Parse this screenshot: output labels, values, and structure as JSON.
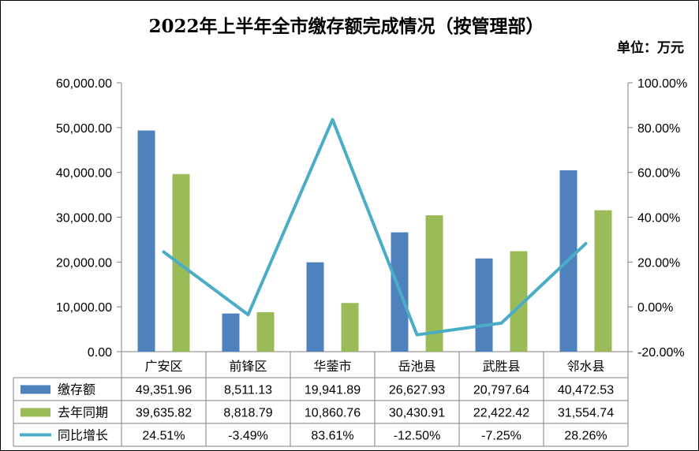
{
  "colors": {
    "bar_current": "#4f81bd",
    "bar_last_year": "#9bbb59",
    "line_growth": "#4bacc6",
    "axis": "#808080"
  },
  "chart_data": {
    "type": "bar",
    "title": "2022年上半年全市缴存额完成情况（按管理部）",
    "unit_label": "单位：万元",
    "categories": [
      "广安区",
      "前锋区",
      "华蓥市",
      "岳池县",
      "武胜县",
      "邻水县"
    ],
    "y_left": {
      "ylim": [
        0,
        60000
      ],
      "tick_labels": [
        "60,000.00",
        "50,000.00",
        "40,000.00",
        "30,000.00",
        "20,000.00",
        "10,000.00",
        "0.00"
      ]
    },
    "y_right": {
      "ylim": [
        -20,
        100
      ],
      "tick_labels": [
        "100.00%",
        "80.00%",
        "60.00%",
        "40.00%",
        "20.00%",
        "0.00%",
        "-20.00%"
      ]
    },
    "grid": false,
    "legend": "data-table",
    "series": [
      {
        "name": "缴存额",
        "type": "bar",
        "axis": "left",
        "values": [
          49351.96,
          8511.13,
          19941.89,
          26627.93,
          20797.64,
          40472.53
        ],
        "labels": [
          "49,351.96",
          "8,511.13",
          "19,941.89",
          "26,627.93",
          "20,797.64",
          "40,472.53"
        ]
      },
      {
        "name": "去年同期",
        "type": "bar",
        "axis": "left",
        "values": [
          39635.82,
          8818.79,
          10860.76,
          30430.91,
          22422.42,
          31554.74
        ],
        "labels": [
          "39,635.82",
          "8,818.79",
          "10,860.76",
          "30,430.91",
          "22,422.42",
          "31,554.74"
        ]
      },
      {
        "name": "同比增长",
        "type": "line",
        "axis": "right",
        "values": [
          24.51,
          -3.49,
          83.61,
          -12.5,
          -7.25,
          28.26
        ],
        "labels": [
          "24.51%",
          "-3.49%",
          "83.61%",
          "-12.50%",
          "-7.25%",
          "28.26%"
        ]
      }
    ]
  }
}
